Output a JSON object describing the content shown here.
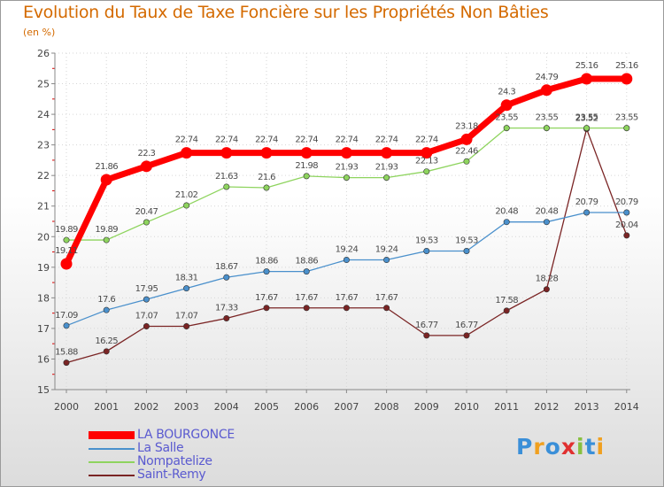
{
  "chart_data": {
    "type": "line",
    "title": "Evolution du Taux de Taxe Foncière sur les Propriétés Non Bâties",
    "unit_label": "(en %)",
    "xlabel": "",
    "ylabel": "(en %)",
    "x": [
      "2000",
      "2001",
      "2002",
      "2003",
      "2004",
      "2005",
      "2006",
      "2007",
      "2008",
      "2009",
      "2010",
      "2011",
      "2012",
      "2013",
      "2014"
    ],
    "ylim": [
      15,
      26
    ],
    "yticks": [
      "15",
      "16",
      "17",
      "18",
      "19",
      "20",
      "21",
      "22",
      "23",
      "24",
      "25",
      "26"
    ],
    "series": [
      {
        "name": "LA BOURGONCE",
        "color": "#ff0000",
        "values": [
          19.11,
          21.86,
          22.3,
          22.74,
          22.74,
          22.74,
          22.74,
          22.74,
          22.74,
          22.74,
          23.18,
          24.3,
          24.79,
          25.16,
          25.16
        ],
        "labels": [
          "19.11",
          "21.86",
          "22.3",
          "22.74",
          "22.74",
          "22.74",
          "22.74",
          "22.74",
          "22.74",
          "22.74",
          "23.18",
          "24.3",
          "24.79",
          "25.16",
          "25.16"
        ]
      },
      {
        "name": "La Salle",
        "color": "#4a90cc",
        "values": [
          17.09,
          17.6,
          17.95,
          18.31,
          18.67,
          18.86,
          18.86,
          19.24,
          19.24,
          19.53,
          19.53,
          20.48,
          20.48,
          20.79,
          20.79
        ],
        "labels": [
          "17.09",
          "17.6",
          "17.95",
          "18.31",
          "18.67",
          "18.86",
          "18.86",
          "19.24",
          "19.24",
          "19.53",
          "19.53",
          "20.48",
          "20.48",
          "20.79",
          "20.79"
        ]
      },
      {
        "name": "Nompatelize",
        "color": "#8ed45e",
        "values": [
          19.89,
          19.89,
          20.47,
          21.02,
          21.63,
          21.6,
          21.98,
          21.93,
          21.93,
          22.13,
          22.46,
          23.55,
          23.55,
          23.55,
          23.55
        ],
        "labels": [
          "19.89",
          "19.89",
          "20.47",
          "21.02",
          "21.63",
          "21.6",
          "21.98",
          "21.93",
          "21.93",
          "22.13",
          "22.46",
          "23.55",
          "23.55",
          "23.55",
          "23.55"
        ]
      },
      {
        "name": "Saint-Remy",
        "color": "#7a2424",
        "values": [
          15.88,
          16.25,
          17.07,
          17.07,
          17.33,
          17.67,
          17.67,
          17.67,
          17.67,
          16.77,
          16.77,
          17.58,
          18.28,
          23.52,
          20.04
        ],
        "labels": [
          "15.88",
          "16.25",
          "17.07",
          "17.07",
          "17.33",
          "17.67",
          "17.67",
          "17.67",
          "17.67",
          "16.77",
          "16.77",
          "17.58",
          "18.28",
          "23.52",
          "20.04"
        ]
      }
    ],
    "grid": true,
    "legend_position": "bottom-left"
  },
  "logo": {
    "text": "Proxiti",
    "letters": [
      "P",
      "r",
      "o",
      "x",
      "i",
      "t",
      "i"
    ],
    "colors": [
      "#3a8fd8",
      "#f0a020",
      "#3a8fd8",
      "#e03030",
      "#88c040",
      "#3a8fd8",
      "#f0a020"
    ]
  }
}
